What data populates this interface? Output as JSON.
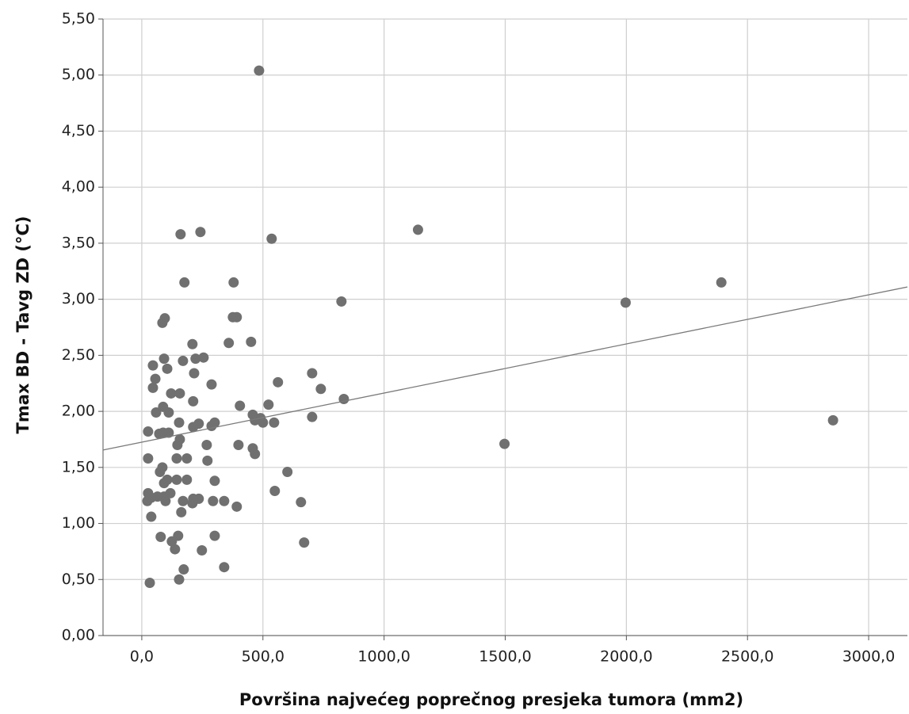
{
  "chart_data": {
    "type": "scatter",
    "x_label": "Površina najvećeg poprečnog presjeka tumora (mm2)",
    "y_label": "Tmax BD - Tavg ZD (°C)",
    "xlim": [
      -160,
      3160
    ],
    "ylim": [
      0,
      5.5
    ],
    "xticks": [
      {
        "value": 0,
        "label": "0,0"
      },
      {
        "value": 500,
        "label": "500,0"
      },
      {
        "value": 1000,
        "label": "1000,0"
      },
      {
        "value": 1500,
        "label": "1500,0"
      },
      {
        "value": 2000,
        "label": "2000,0"
      },
      {
        "value": 2500,
        "label": "2500,0"
      },
      {
        "value": 3000,
        "label": "3000,0"
      }
    ],
    "yticks": [
      {
        "value": 0,
        "label": "0,00"
      },
      {
        "value": 0.5,
        "label": "0,50"
      },
      {
        "value": 1,
        "label": "1,00"
      },
      {
        "value": 1.5,
        "label": "1,50"
      },
      {
        "value": 2,
        "label": "2,00"
      },
      {
        "value": 2.5,
        "label": "2,50"
      },
      {
        "value": 3,
        "label": "3,00"
      },
      {
        "value": 3.5,
        "label": "3,50"
      },
      {
        "value": 4,
        "label": "4,00"
      },
      {
        "value": 4.5,
        "label": "4,50"
      },
      {
        "value": 5,
        "label": "5,00"
      },
      {
        "value": 5.5,
        "label": "5,50"
      }
    ],
    "grid": true,
    "color": "#707070",
    "line_color": "#7a7a7a",
    "x": [
      484,
      1140,
      824,
      834,
      1497,
      1997,
      2392,
      2853,
      160,
      242,
      536,
      176,
      379,
      95,
      85,
      376,
      392,
      359,
      209,
      451,
      92,
      105,
      46,
      56,
      46,
      170,
      222,
      255,
      216,
      288,
      157,
      121,
      59,
      88,
      111,
      212,
      26,
      72,
      88,
      111,
      154,
      157,
      212,
      235,
      268,
      288,
      301,
      147,
      405,
      458,
      467,
      490,
      500,
      523,
      546,
      562,
      703,
      739,
      703,
      399,
      458,
      467,
      26,
      85,
      75,
      144,
      186,
      271,
      144,
      186,
      105,
      92,
      301,
      601,
      549,
      26,
      39,
      23,
      65,
      92,
      98,
      118,
      170,
      212,
      235,
      294,
      340,
      392,
      209,
      163,
      39,
      657,
      78,
      150,
      124,
      301,
      137,
      248,
      670,
      173,
      340,
      154,
      33
    ],
    "y": [
      5.04,
      3.62,
      2.98,
      2.11,
      1.71,
      2.97,
      3.15,
      1.92,
      3.58,
      3.6,
      3.54,
      3.15,
      3.15,
      2.83,
      2.79,
      2.84,
      2.84,
      2.61,
      2.6,
      2.62,
      2.47,
      2.38,
      2.41,
      2.29,
      2.21,
      2.45,
      2.47,
      2.48,
      2.34,
      2.24,
      2.16,
      2.16,
      1.99,
      2.04,
      1.99,
      2.09,
      1.82,
      1.8,
      1.81,
      1.81,
      1.9,
      1.75,
      1.86,
      1.89,
      1.7,
      1.87,
      1.9,
      1.7,
      2.05,
      1.97,
      1.92,
      1.94,
      1.9,
      2.06,
      1.9,
      2.26,
      2.34,
      2.2,
      1.95,
      1.7,
      1.67,
      1.62,
      1.58,
      1.5,
      1.46,
      1.58,
      1.58,
      1.56,
      1.39,
      1.39,
      1.39,
      1.36,
      1.38,
      1.46,
      1.29,
      1.27,
      1.23,
      1.2,
      1.24,
      1.24,
      1.2,
      1.27,
      1.2,
      1.22,
      1.22,
      1.2,
      1.2,
      1.15,
      1.18,
      1.1,
      1.06,
      1.19,
      0.88,
      0.89,
      0.84,
      0.89,
      0.77,
      0.76,
      0.83,
      0.59,
      0.61,
      0.5,
      0.47
    ],
    "fit_line": {
      "x": [
        -160,
        3160
      ],
      "y": [
        1.655,
        3.11
      ]
    }
  }
}
